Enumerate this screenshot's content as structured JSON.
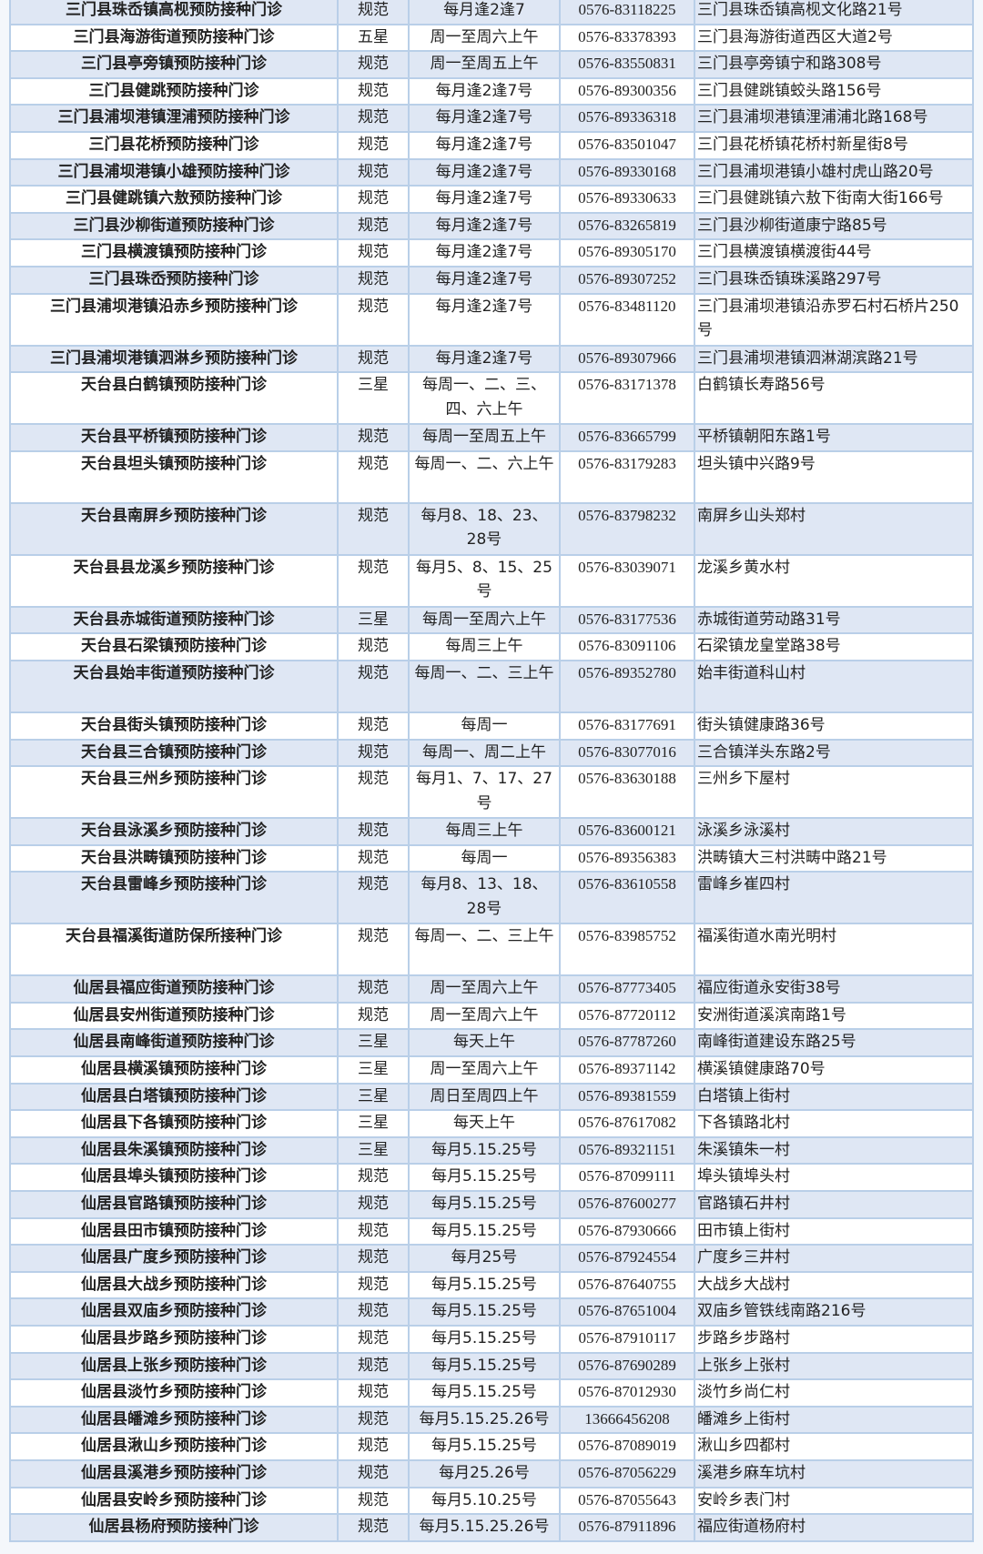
{
  "colors": {
    "row_alt": "#dfe7f4",
    "row": "#ffffff",
    "border": "#b9cfe8"
  },
  "rows": [
    {
      "name": "三门县珠岙镇高枧预防接种门诊",
      "level": "规范",
      "schedule": "每月逢2逢7",
      "phone": "0576-83118225",
      "address": "三门县珠岙镇高枧文化路21号"
    },
    {
      "name": "三门县海游街道预防接种门诊",
      "level": "五星",
      "schedule": "周一至周六上午",
      "phone": "0576-83378393",
      "address": "三门县海游街道西区大道2号"
    },
    {
      "name": "三门县亭旁镇预防接种门诊",
      "level": "规范",
      "schedule": "周一至周五上午",
      "phone": "0576-83550831",
      "address": "三门县亭旁镇宁和路308号"
    },
    {
      "name": "三门县健跳预防接种门诊",
      "level": "规范",
      "schedule": "每月逢2逢7号",
      "phone": "0576-89300356",
      "address": "三门县健跳镇蛟头路156号"
    },
    {
      "name": "三门县浦坝港镇浬浦预防接种门诊",
      "level": "规范",
      "schedule": "每月逢2逢7号",
      "phone": "0576-89336318",
      "address": "三门县浦坝港镇浬浦浦北路168号"
    },
    {
      "name": "三门县花桥预防接种门诊",
      "level": "规范",
      "schedule": "每月逢2逢7号",
      "phone": "0576-83501047",
      "address": "三门县花桥镇花桥村新星街8号"
    },
    {
      "name": "三门县浦坝港镇小雄预防接种门诊",
      "level": "规范",
      "schedule": "每月逢2逢7号",
      "phone": "0576-89330168",
      "address": "三门县浦坝港镇小雄村虎山路20号"
    },
    {
      "name": "三门县健跳镇六敖预防接种门诊",
      "level": "规范",
      "schedule": "每月逢2逢7号",
      "phone": "0576-89330633",
      "address": "三门县健跳镇六敖下街南大街166号"
    },
    {
      "name": "三门县沙柳街道预防接种门诊",
      "level": "规范",
      "schedule": "每月逢2逢7号",
      "phone": "0576-83265819",
      "address": "三门县沙柳街道康宁路85号"
    },
    {
      "name": "三门县横渡镇预防接种门诊",
      "level": "规范",
      "schedule": "每月逢2逢7号",
      "phone": "0576-89305170",
      "address": "三门县横渡镇横渡街44号"
    },
    {
      "name": "三门县珠岙预防接种门诊",
      "level": "规范",
      "schedule": "每月逢2逢7号",
      "phone": "0576-89307252",
      "address": "三门县珠岙镇珠溪路297号"
    },
    {
      "name": "三门县浦坝港镇沿赤乡预防接种门诊",
      "level": "规范",
      "schedule": "每月逢2逢7号",
      "phone": "0576-83481120",
      "address": "三门县浦坝港镇沿赤罗石村石桥片250号",
      "tall": true
    },
    {
      "name": "三门县浦坝港镇泗淋乡预防接种门诊",
      "level": "规范",
      "schedule": "每月逢2逢7号",
      "phone": "0576-89307966",
      "address": "三门县浦坝港镇泗淋湖滨路21号"
    },
    {
      "name": "天台县白鹤镇预防接种门诊",
      "level": "三星",
      "schedule": "每周一、二、三、四、六上午",
      "phone": "0576-83171378",
      "address": "白鹤镇长寿路56号",
      "tall": true
    },
    {
      "name": "天台县平桥镇预防接种门诊",
      "level": "规范",
      "schedule": "每周一至周五上午",
      "phone": "0576-83665799",
      "address": "平桥镇朝阳东路1号"
    },
    {
      "name": "天台县坦头镇预防接种门诊",
      "level": "规范",
      "schedule": "每周一、二、六上午",
      "phone": "0576-83179283",
      "address": "坦头镇中兴路9号",
      "tall": true
    },
    {
      "name": "天台县南屏乡预防接种门诊",
      "level": "规范",
      "schedule": "每月8、18、23、28号",
      "phone": "0576-83798232",
      "address": "南屏乡山头郑村",
      "tall": true
    },
    {
      "name": "天台县县龙溪乡预防接种门诊",
      "level": "规范",
      "schedule": "每月5、8、15、25号",
      "phone": "0576-83039071",
      "address": "龙溪乡黄水村",
      "tall": true
    },
    {
      "name": "天台县赤城街道预防接种门诊",
      "level": "三星",
      "schedule": "每周一至周六上午",
      "phone": "0576-83177536",
      "address": "赤城街道劳动路31号"
    },
    {
      "name": "天台县石梁镇预防接种门诊",
      "level": "规范",
      "schedule": "每周三上午",
      "phone": "0576-83091106",
      "address": "石梁镇龙皇堂路38号"
    },
    {
      "name": "天台县始丰街道预防接种门诊",
      "level": "规范",
      "schedule": "每周一、二、三上午",
      "phone": "0576-89352780",
      "address": "始丰街道科山村",
      "tall": true
    },
    {
      "name": "天台县街头镇预防接种门诊",
      "level": "规范",
      "schedule": "每周一",
      "phone": "0576-83177691",
      "address": "街头镇健康路36号"
    },
    {
      "name": "天台县三合镇预防接种门诊",
      "level": "规范",
      "schedule": "每周一、周二上午",
      "phone": "0576-83077016",
      "address": "三合镇洋头东路2号"
    },
    {
      "name": "天台县三州乡预防接种门诊",
      "level": "规范",
      "schedule": "每月1、7、17、27号",
      "phone": "0576-83630188",
      "address": "三州乡下屋村",
      "tall": true
    },
    {
      "name": "天台县泳溪乡预防接种门诊",
      "level": "规范",
      "schedule": "每周三上午",
      "phone": "0576-83600121",
      "address": "泳溪乡泳溪村"
    },
    {
      "name": "天台县洪畴镇预防接种门诊",
      "level": "规范",
      "schedule": "每周一",
      "phone": "0576-89356383",
      "address": "洪畴镇大三村洪畴中路21号"
    },
    {
      "name": "天台县雷峰乡预防接种门诊",
      "level": "规范",
      "schedule": "每月8、13、18、28号",
      "phone": "0576-83610558",
      "address": "雷峰乡崔四村",
      "tall": true
    },
    {
      "name": "天台县福溪街道防保所接种门诊",
      "level": "规范",
      "schedule": "每周一、二、三上午",
      "phone": "0576-83985752",
      "address": "福溪街道水南光明村",
      "tall": true
    },
    {
      "name": "仙居县福应街道预防接种门诊",
      "level": "规范",
      "schedule": "周一至周六上午",
      "phone": "0576-87773405",
      "address": "福应街道永安街38号"
    },
    {
      "name": "仙居县安州街道预防接种门诊",
      "level": "规范",
      "schedule": "周一至周六上午",
      "phone": "0576-87720112",
      "address": "安洲街道溪滨南路1号"
    },
    {
      "name": "仙居县南峰街道预防接种门诊",
      "level": "三星",
      "schedule": "每天上午",
      "phone": "0576-87787260",
      "address": "南峰街道建设东路25号"
    },
    {
      "name": "仙居县横溪镇预防接种门诊",
      "level": "三星",
      "schedule": "周一至周六上午",
      "phone": "0576-89371142",
      "address": "横溪镇健康路70号"
    },
    {
      "name": "仙居县白塔镇预防接种门诊",
      "level": "三星",
      "schedule": "周日至周四上午",
      "phone": "0576-89381559",
      "address": "白塔镇上街村"
    },
    {
      "name": "仙居县下各镇预防接种门诊",
      "level": "三星",
      "schedule": "每天上午",
      "phone": "0576-87617082",
      "address": "下各镇路北村"
    },
    {
      "name": "仙居县朱溪镇预防接种门诊",
      "level": "三星",
      "schedule": "每月5.15.25号",
      "phone": "0576-89321151",
      "address": "朱溪镇朱一村"
    },
    {
      "name": "仙居县埠头镇预防接种门诊",
      "level": "规范",
      "schedule": "每月5.15.25号",
      "phone": "0576-87099111",
      "address": "埠头镇埠头村"
    },
    {
      "name": "仙居县官路镇预防接种门诊",
      "level": "规范",
      "schedule": "每月5.15.25号",
      "phone": "0576-87600277",
      "address": "官路镇石井村"
    },
    {
      "name": "仙居县田市镇预防接种门诊",
      "level": "规范",
      "schedule": "每月5.15.25号",
      "phone": "0576-87930666",
      "address": "田市镇上街村"
    },
    {
      "name": "仙居县广度乡预防接种门诊",
      "level": "规范",
      "schedule": "每月25号",
      "phone": "0576-87924554",
      "address": "广度乡三井村"
    },
    {
      "name": "仙居县大战乡预防接种门诊",
      "level": "规范",
      "schedule": "每月5.15.25号",
      "phone": "0576-87640755",
      "address": "大战乡大战村"
    },
    {
      "name": "仙居县双庙乡预防接种门诊",
      "level": "规范",
      "schedule": "每月5.15.25号",
      "phone": "0576-87651004",
      "address": "双庙乡管铁线南路216号"
    },
    {
      "name": "仙居县步路乡预防接种门诊",
      "level": "规范",
      "schedule": "每月5.15.25号",
      "phone": "0576-87910117",
      "address": "步路乡步路村"
    },
    {
      "name": "仙居县上张乡预防接种门诊",
      "level": "规范",
      "schedule": "每月5.15.25号",
      "phone": "0576-87690289",
      "address": "上张乡上张村"
    },
    {
      "name": "仙居县淡竹乡预防接种门诊",
      "level": "规范",
      "schedule": "每月5.15.25号",
      "phone": "0576-87012930",
      "address": "淡竹乡尚仁村"
    },
    {
      "name": "仙居县皤滩乡预防接种门诊",
      "level": "规范",
      "schedule": "每月5.15.25.26号",
      "phone": "13666456208",
      "address": "皤滩乡上街村"
    },
    {
      "name": "仙居县湫山乡预防接种门诊",
      "level": "规范",
      "schedule": "每月5.15.25号",
      "phone": "0576-87089019",
      "address": "湫山乡四都村"
    },
    {
      "name": "仙居县溪港乡预防接种门诊",
      "level": "规范",
      "schedule": "每月25.26号",
      "phone": "0576-87056229",
      "address": "溪港乡麻车坑村"
    },
    {
      "name": "仙居县安岭乡预防接种门诊",
      "level": "规范",
      "schedule": "每月5.10.25号",
      "phone": "0576-87055643",
      "address": "安岭乡表门村"
    },
    {
      "name": "仙居县杨府预防接种门诊",
      "level": "规范",
      "schedule": "每月5.15.25.26号",
      "phone": "0576-87911896",
      "address": "福应街道杨府村"
    }
  ]
}
